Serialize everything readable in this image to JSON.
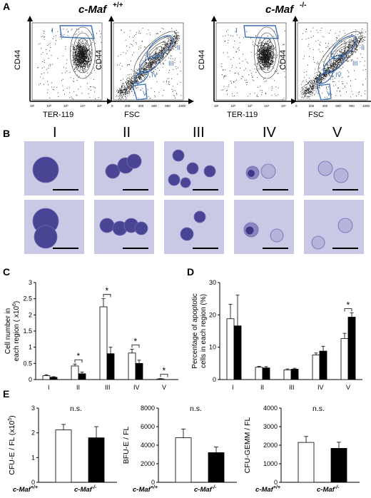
{
  "panel_labels": {
    "a": "A",
    "b": "B",
    "c": "C",
    "d": "D",
    "e": "E"
  },
  "genotypes": {
    "wt": "c-Maf",
    "wt_sup": "+/+",
    "ko": "c-Maf",
    "ko_sup": "-/-"
  },
  "flow": {
    "cd44": "CD44",
    "ter119": "TER-119",
    "fsc": "FSC",
    "ter_ticks": [
      "10¹",
      "10²",
      "10³",
      "10⁴",
      "10⁵"
    ],
    "fsc_ticks": [
      "0",
      "200",
      "400",
      "600",
      "800",
      "1000"
    ],
    "gate_region": "I",
    "fsc_regions": [
      "II",
      "III",
      "IV",
      "V"
    ]
  },
  "morphology": {
    "columns": [
      "I",
      "II",
      "III",
      "IV",
      "V"
    ]
  },
  "chart_data": [
    {
      "type": "bar",
      "panel": "C",
      "ylabel_line1": "Cell number in",
      "ylabel_line2": "each region ( x10",
      "ylabel_exp": "6",
      "ylabel_tail": ")",
      "categories": [
        "I",
        "II",
        "III",
        "IV",
        "V"
      ],
      "series": [
        {
          "values": [
            0.12,
            0.42,
            2.25,
            0.82,
            0.02
          ],
          "errors": [
            0.03,
            0.06,
            0.25,
            0.12,
            0.01
          ]
        },
        {
          "values": [
            0.07,
            0.18,
            0.8,
            0.5,
            0.0
          ],
          "errors": [
            0.02,
            0.05,
            0.2,
            0.1,
            0.0
          ]
        }
      ],
      "ylim": [
        0,
        3
      ],
      "yticks": [
        "0",
        "0.5",
        "1",
        "1.5",
        "2",
        "2.5",
        "3"
      ],
      "significance": [
        "",
        "*",
        "*",
        "*",
        "*"
      ]
    },
    {
      "type": "bar",
      "panel": "D",
      "ylabel_line1": "Percentage of apoptotic",
      "ylabel_line2": "cells in each region (%)",
      "categories": [
        "I",
        "II",
        "III",
        "IV",
        "V"
      ],
      "series": [
        {
          "values": [
            18.8,
            3.8,
            3.0,
            7.6,
            12.7
          ],
          "errors": [
            4.5,
            0.3,
            0.3,
            0.6,
            1.6
          ]
        },
        {
          "values": [
            16.6,
            3.6,
            3.2,
            8.8,
            19.3
          ],
          "errors": [
            9.5,
            0.4,
            0.3,
            1.5,
            1.3
          ]
        }
      ],
      "ylim": [
        0,
        30
      ],
      "yticks": [
        "0",
        "10",
        "20",
        "30"
      ],
      "significance": [
        "",
        "",
        "",
        "",
        "*"
      ]
    },
    {
      "type": "bar",
      "panel": "E1",
      "ylabel": "CFU-E / FL (x10",
      "ylabel_exp": "5",
      "ylabel_tail": ")",
      "values": [
        2.12,
        1.8
      ],
      "errors": [
        0.22,
        0.45
      ],
      "ylim": [
        0,
        3
      ],
      "yticks": [
        "0",
        "1",
        "2",
        "3"
      ],
      "annotation": "n.s."
    },
    {
      "type": "bar",
      "panel": "E2",
      "ylabel": "BFU-E / FL",
      "values": [
        4800,
        3200
      ],
      "errors": [
        950,
        600
      ],
      "ylim": [
        0,
        8000
      ],
      "yticks": [
        "0",
        "2000",
        "4000",
        "6000",
        "8000"
      ],
      "annotation": "n.s."
    },
    {
      "type": "bar",
      "panel": "E3",
      "ylabel": "CFU-GEMM / FL",
      "values": [
        2150,
        1830
      ],
      "errors": [
        320,
        330
      ],
      "ylim": [
        0,
        4000
      ],
      "yticks": [
        "0",
        "1000",
        "2000",
        "3000",
        "4000"
      ],
      "annotation": "n.s."
    }
  ],
  "colors": {
    "wt_fill": "#ffffff",
    "ko_fill": "#000000",
    "gate": "#3b6fb6",
    "cell_bg": "#c9c9e6",
    "cell_stain": "#4a4494"
  }
}
